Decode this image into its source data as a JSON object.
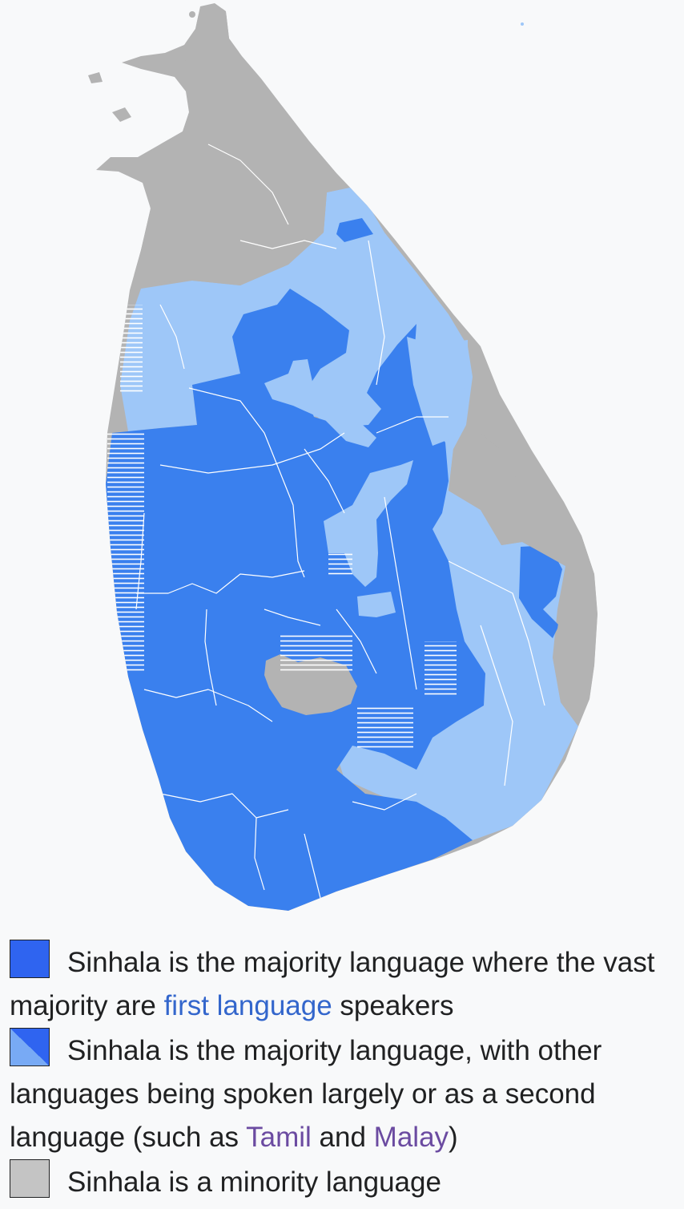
{
  "colors": {
    "majority_first_language": "#3a80ee",
    "majority_with_other_languages": "#9ec7f8",
    "minority": "#b3b3b3",
    "boundary": "#ffffff",
    "link": "#3366cc",
    "link_visited": "#6b4ba1",
    "text": "#202122",
    "background": "#f8f9fa"
  },
  "legend": {
    "items": [
      {
        "swatch": "solid-blue",
        "parts": [
          {
            "text": "Sinhala is the majority language where the vast majority are "
          },
          {
            "text": "first language",
            "link": true
          },
          {
            "text": " speakers"
          }
        ]
      },
      {
        "swatch": "split-blue",
        "parts": [
          {
            "text": "Sinhala is the majority language, with other languages being spoken largely or as a second language (such as "
          },
          {
            "text": "Tamil",
            "link": true,
            "visited": true
          },
          {
            "text": " and "
          },
          {
            "text": "Malay",
            "link": true,
            "visited": true
          },
          {
            "text": ")"
          }
        ]
      },
      {
        "swatch": "grey",
        "parts": [
          {
            "text": "Sinhala is a minority language"
          }
        ]
      }
    ]
  }
}
